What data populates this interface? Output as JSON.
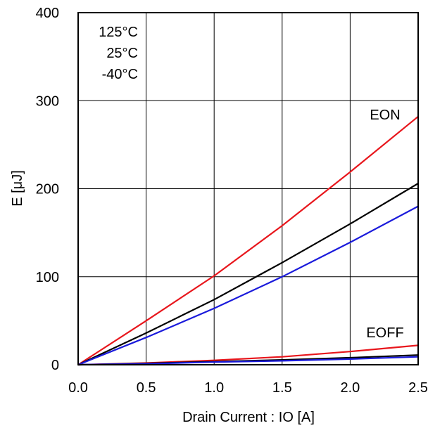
{
  "chart_data": {
    "type": "line",
    "xlabel": "Drain Current : IO [A]",
    "ylabel": "E [μJ]",
    "xlim": [
      0,
      2.5
    ],
    "ylim": [
      0,
      400
    ],
    "x_ticks": [
      0.0,
      0.5,
      1.0,
      1.5,
      2.0,
      2.5
    ],
    "x_tick_labels": [
      "0.0",
      "0.5",
      "1.0",
      "1.5",
      "2.0",
      "2.5"
    ],
    "y_ticks": [
      0,
      100,
      200,
      300,
      400
    ],
    "y_tick_labels": [
      "0",
      "100",
      "200",
      "300",
      "400"
    ],
    "grid": true,
    "legend": {
      "placement": "top-left",
      "entries": [
        "125°C",
        "25°C",
        "-40°C"
      ]
    },
    "annotations": [
      {
        "text": "EON",
        "x": 2.4,
        "y": 285
      },
      {
        "text": "EOFF",
        "x": 2.4,
        "y": 30
      }
    ],
    "colors": {
      "125C": "#e8161c",
      "25C": "#000000",
      "-40C": "#1a1adb"
    },
    "series": [
      {
        "group": "EON",
        "color": "#e8161c",
        "x": [
          0,
          0.5,
          1.0,
          1.5,
          2.0,
          2.5
        ],
        "y": [
          0,
          50,
          101,
          158,
          219,
          282
        ]
      },
      {
        "group": "EON",
        "color": "#000000",
        "x": [
          0,
          0.5,
          1.0,
          1.5,
          2.0,
          2.5
        ],
        "y": [
          0,
          36,
          74,
          116,
          160,
          206
        ]
      },
      {
        "group": "EON",
        "color": "#1a1adb",
        "x": [
          0,
          0.5,
          1.0,
          1.5,
          2.0,
          2.5
        ],
        "y": [
          0,
          31,
          64,
          100,
          139,
          180
        ]
      },
      {
        "group": "EOFF",
        "color": "#e8161c",
        "x": [
          0,
          0.5,
          1.0,
          1.5,
          2.0,
          2.5
        ],
        "y": [
          0,
          2,
          5,
          9,
          15,
          22
        ]
      },
      {
        "group": "EOFF",
        "color": "#000000",
        "x": [
          0,
          0.5,
          1.0,
          1.5,
          2.0,
          2.5
        ],
        "y": [
          0,
          1.5,
          3.5,
          5.5,
          8,
          11
        ]
      },
      {
        "group": "EOFF",
        "color": "#1a1adb",
        "x": [
          0,
          0.5,
          1.0,
          1.5,
          2.0,
          2.5
        ],
        "y": [
          0,
          1,
          3,
          4.5,
          6.5,
          9
        ]
      }
    ]
  }
}
